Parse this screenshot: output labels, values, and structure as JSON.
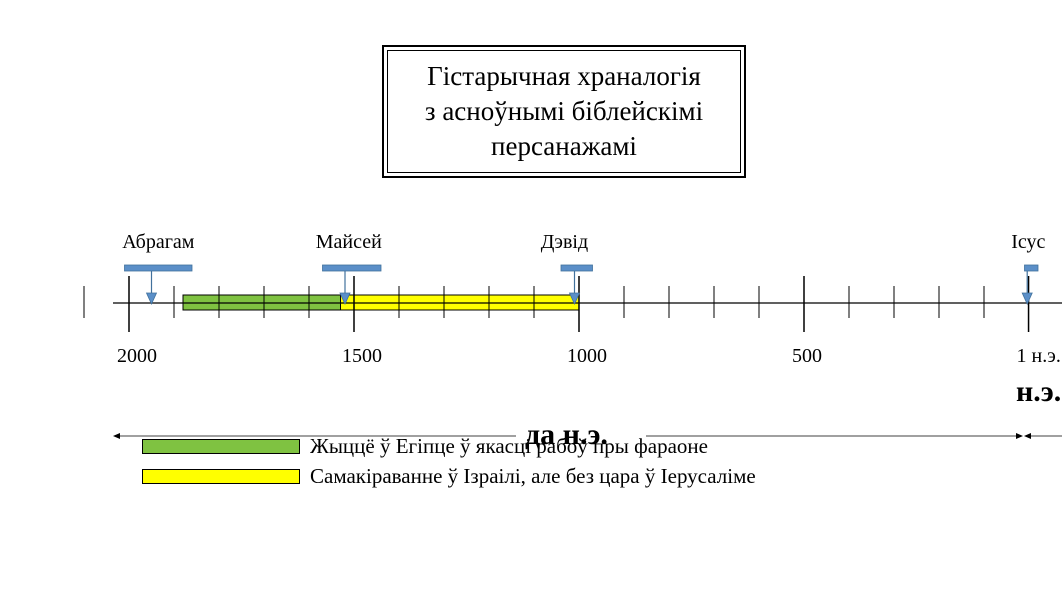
{
  "title": {
    "lines": [
      "Гістарычная храналогія",
      "з асноўнымі біблейскімі",
      "персанажамі"
    ]
  },
  "axis": {
    "ticks_major": [
      2000,
      1500,
      1000,
      500,
      1
    ],
    "tick_labels": [
      "2000",
      "1500",
      "1000",
      "500",
      "1 н.э."
    ],
    "minor_step": 100,
    "range": [
      2000,
      1
    ]
  },
  "persons": [
    {
      "name": "Абрагам",
      "year": 1950,
      "bar": [
        2010,
        1860
      ]
    },
    {
      "name": "Майсей",
      "year": 1520,
      "bar": [
        1570,
        1440
      ]
    },
    {
      "name": "Дэвід",
      "year": 1010,
      "bar": [
        1040,
        970
      ]
    },
    {
      "name": "Ісус",
      "year": 4,
      "bar": [
        10,
        -20
      ]
    }
  ],
  "periods": [
    {
      "label": "Жыццё ў Егіпце ў якасці рабоў пры фараоне",
      "start": 1880,
      "end": 1530,
      "color": "#7fc241"
    },
    {
      "label": "Самакіраванне ў Ізраілі, але без цара ў Іерусаліме",
      "start": 1530,
      "end": 1000,
      "color": "#ffff00"
    }
  ],
  "eras": {
    "bce": "да н.э.",
    "ce": "н.э."
  },
  "colors": {
    "marker": "#5b8fc8",
    "marker_stroke": "#41719c"
  }
}
